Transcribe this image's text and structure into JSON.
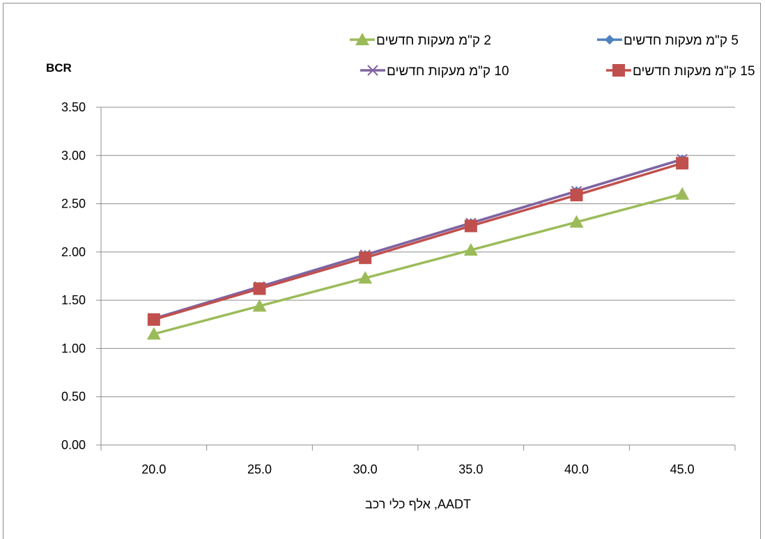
{
  "chart_data": {
    "type": "line",
    "title": "",
    "ylabel": "BCR",
    "xlabel": "AADT, אלף כלי רכב",
    "categories": [
      "20.0",
      "25.0",
      "30.0",
      "35.0",
      "40.0",
      "45.0"
    ],
    "ylim": [
      0,
      3.5
    ],
    "yticks": [
      "0.00",
      "0.50",
      "1.00",
      "1.50",
      "2.00",
      "2.50",
      "3.00",
      "3.50"
    ],
    "grid": true,
    "legend_position": "top",
    "series": [
      {
        "name": "2 ק\"מ מעקות חדשים",
        "color": "#9bbb59",
        "marker": "triangle",
        "values": [
          1.15,
          1.44,
          1.73,
          2.02,
          2.31,
          2.6
        ]
      },
      {
        "name": "5 ק\"מ מעקות חדשים",
        "color": "#4f81bd",
        "marker": "diamond",
        "values": [
          1.31,
          1.64,
          1.97,
          2.3,
          2.63,
          2.96
        ]
      },
      {
        "name": "10 ק\"מ מעקות חדשים",
        "color": "#8064a2",
        "marker": "x",
        "values": [
          1.31,
          1.64,
          1.97,
          2.3,
          2.63,
          2.96
        ]
      },
      {
        "name": "15 ק\"מ מעקות חדשים",
        "color": "#c0504d",
        "marker": "square",
        "values": [
          1.3,
          1.62,
          1.94,
          2.27,
          2.59,
          2.92
        ]
      }
    ]
  }
}
